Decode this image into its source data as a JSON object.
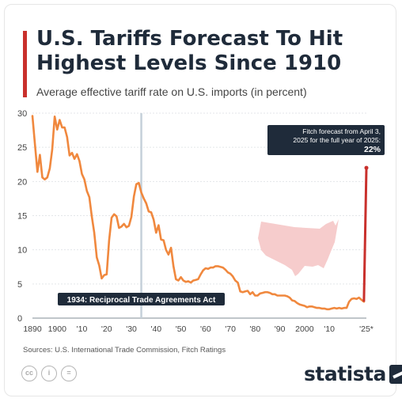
{
  "header": {
    "title": "U.S. Tariffs Forecast To Hit Highest Levels Since 1910",
    "subtitle": "Average effective tariff rate on U.S. imports (in percent)"
  },
  "footer": {
    "source": "Sources: U.S. International Trade Commission, Fitch Ratings",
    "brand": "statista"
  },
  "icons": {
    "license": [
      "cc-icon",
      "attribution-icon",
      "no-derivatives-icon"
    ],
    "logo": "statista-logo-icon"
  },
  "colors": {
    "line": "#f0883e",
    "forecast": "#c9302c",
    "marker": "#c5d0d9",
    "annotation_bg": "#1f2b3a",
    "map": "#f6cccc"
  },
  "chart_data": {
    "type": "line",
    "title": "U.S. Tariffs Forecast To Hit Highest Levels Since 1910",
    "subtitle": "Average effective tariff rate on U.S. imports (in percent)",
    "xlabel": "",
    "ylabel": "",
    "xlim": [
      1890,
      2025
    ],
    "ylim": [
      0,
      30
    ],
    "y_ticks": [
      0,
      5,
      10,
      15,
      20,
      25,
      30
    ],
    "x_ticks": [
      1890,
      1900,
      1910,
      1920,
      1930,
      1940,
      1950,
      1960,
      1970,
      1980,
      1990,
      2000,
      2010,
      2025
    ],
    "x_tick_labels": [
      "1890",
      "1900",
      "'10",
      "'20",
      "'30",
      "'40",
      "'50",
      "'60",
      "'70",
      "'80",
      "'90",
      "2000",
      "'10",
      "'25*"
    ],
    "grid": true,
    "series": [
      {
        "x": [
          1890,
          1891,
          1892,
          1893,
          1894,
          1895,
          1896,
          1897,
          1898,
          1899,
          1900,
          1901,
          1902,
          1903,
          1904,
          1905,
          1906,
          1907,
          1908,
          1909,
          1910,
          1911,
          1912,
          1913,
          1914,
          1915,
          1916,
          1917,
          1918,
          1919,
          1920,
          1921,
          1922,
          1923,
          1924,
          1925,
          1926,
          1927,
          1928,
          1929,
          1930,
          1931,
          1932,
          1933,
          1934,
          1935,
          1936,
          1937,
          1938,
          1939,
          1940,
          1941,
          1942,
          1943,
          1944,
          1945,
          1946,
          1947,
          1948,
          1949,
          1950,
          1951,
          1952,
          1953,
          1954,
          1955,
          1956,
          1957,
          1958,
          1959,
          1960,
          1961,
          1962,
          1963,
          1964,
          1965,
          1966,
          1967,
          1968,
          1969,
          1970,
          1971,
          1972,
          1973,
          1974,
          1975,
          1976,
          1977,
          1978,
          1979,
          1980,
          1981,
          1982,
          1983,
          1984,
          1985,
          1986,
          1987,
          1988,
          1989,
          1990,
          1991,
          1992,
          1993,
          1994,
          1995,
          1996,
          1997,
          1998,
          1999,
          2000,
          2001,
          2002,
          2003,
          2004,
          2005,
          2006,
          2007,
          2008,
          2009,
          2010,
          2011,
          2012,
          2013,
          2014,
          2015,
          2016,
          2017,
          2018,
          2019,
          2020,
          2021,
          2022,
          2023,
          2024
        ],
        "values": [
          29.6,
          25.5,
          21.4,
          23.9,
          20.6,
          20.3,
          20.6,
          21.9,
          24.7,
          29.5,
          27.6,
          29.0,
          27.9,
          27.9,
          26.5,
          23.8,
          24.2,
          23.3,
          24.0,
          23.0,
          21.1,
          20.3,
          18.6,
          17.7,
          14.9,
          12.5,
          8.9,
          7.7,
          5.8,
          6.3,
          6.4,
          11.4,
          14.7,
          15.2,
          14.9,
          13.2,
          13.4,
          13.8,
          13.3,
          13.5,
          14.8,
          17.8,
          19.6,
          19.8,
          18.4,
          17.5,
          16.8,
          15.6,
          15.5,
          14.4,
          12.5,
          13.6,
          11.5,
          11.4,
          10.0,
          9.3,
          10.3,
          7.6,
          5.7,
          5.5,
          6.0,
          5.5,
          5.3,
          5.4,
          5.2,
          5.5,
          5.6,
          5.7,
          6.4,
          7.0,
          7.3,
          7.2,
          7.4,
          7.4,
          7.6,
          7.6,
          7.5,
          7.4,
          7.1,
          6.7,
          6.5,
          6.1,
          5.5,
          5.2,
          3.9,
          3.8,
          3.9,
          4.0,
          3.5,
          3.8,
          3.3,
          3.3,
          3.6,
          3.7,
          3.8,
          3.8,
          3.7,
          3.5,
          3.5,
          3.3,
          3.3,
          3.3,
          3.3,
          3.2,
          3.0,
          2.6,
          2.5,
          2.2,
          2.0,
          1.9,
          1.8,
          1.6,
          1.7,
          1.7,
          1.6,
          1.5,
          1.5,
          1.4,
          1.4,
          1.3,
          1.3,
          1.4,
          1.5,
          1.4,
          1.5,
          1.4,
          1.5,
          1.5,
          2.4,
          2.8,
          2.9,
          2.8,
          3.0,
          2.7,
          2.4
        ]
      }
    ],
    "forecast": {
      "x": [
        2024,
        2025
      ],
      "values": [
        2.4,
        22
      ]
    },
    "annotations": [
      {
        "x": 1934,
        "text": "1934: Reciprocal Trade Agreements Act"
      },
      {
        "x": 2025,
        "line1": "Fitch forecast from April 3,",
        "line2": "2025 for the full year of 2025:",
        "value_text": "22%"
      }
    ]
  }
}
